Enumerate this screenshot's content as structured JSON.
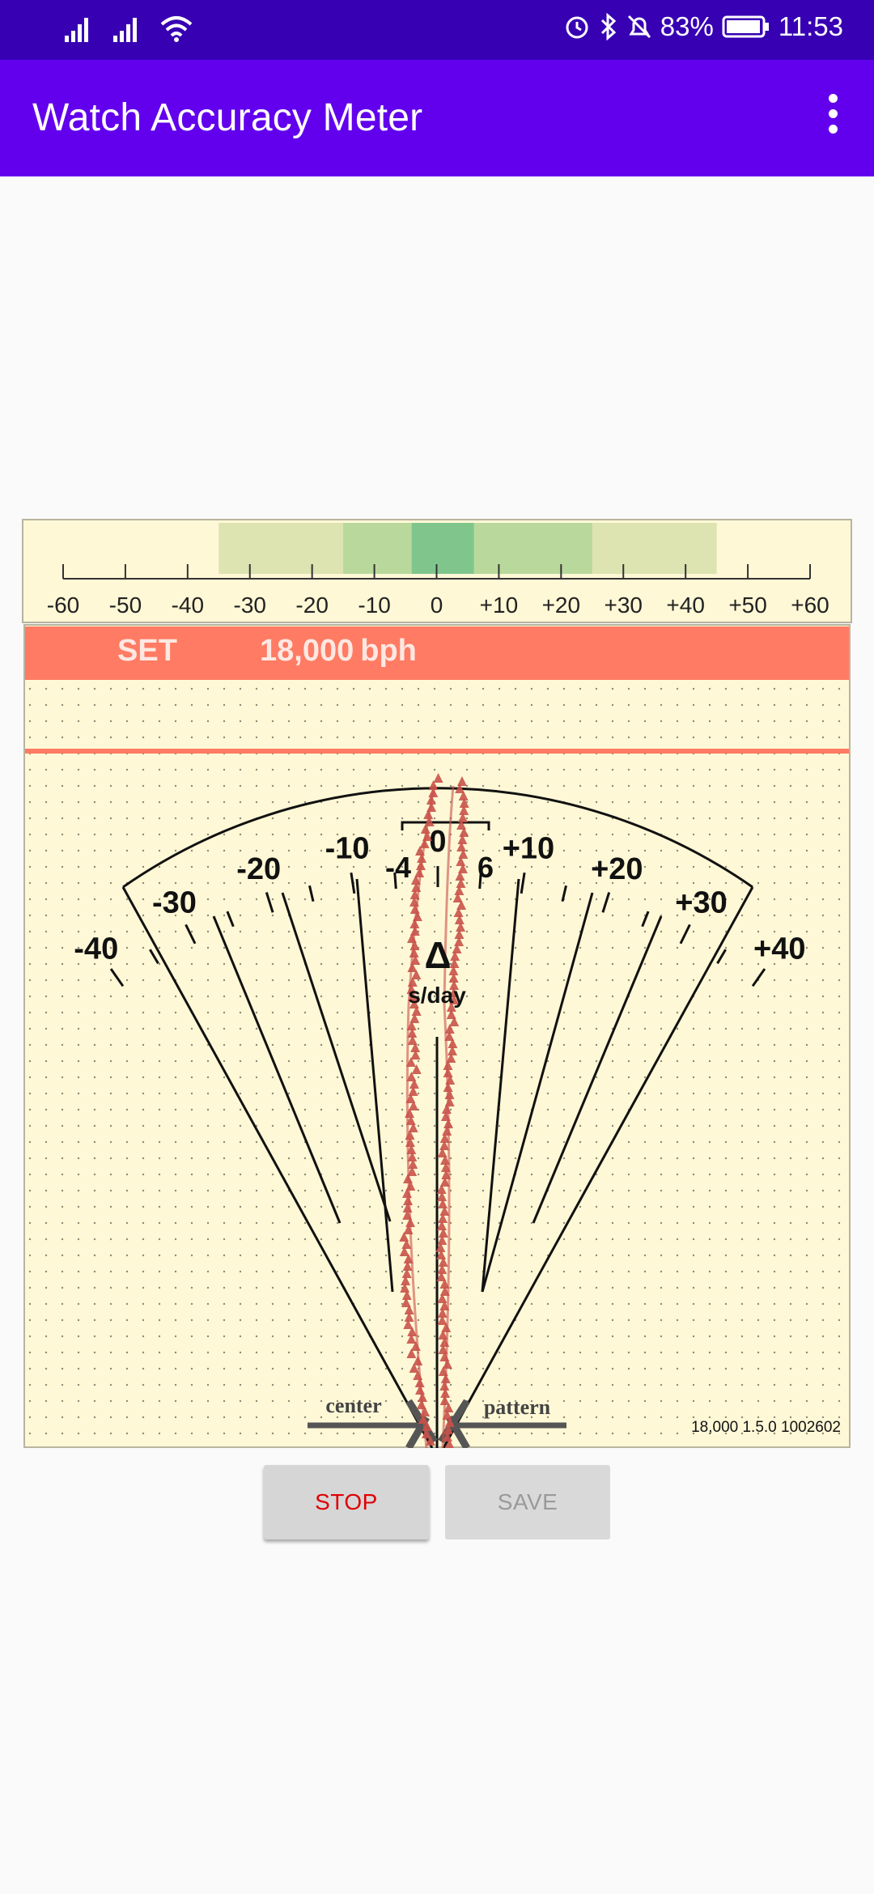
{
  "status_bar": {
    "battery": "83%",
    "time": "11:53",
    "icons": [
      "signal-icon",
      "signal-icon",
      "wifi-icon",
      "alarm-icon",
      "bluetooth-icon",
      "notifications-off-icon",
      "battery-icon"
    ]
  },
  "app_bar": {
    "title": "Watch Accuracy Meter",
    "menu_icon": "overflow-menu-icon"
  },
  "top_scale": {
    "labels": [
      "-60",
      "-50",
      "-40",
      "-30",
      "-20",
      "-10",
      "0",
      "+10",
      "+20",
      "+30",
      "+40",
      "+50",
      "+60"
    ],
    "values": [
      -60,
      -50,
      -40,
      -30,
      -20,
      -10,
      0,
      10,
      20,
      30,
      40,
      50,
      60
    ],
    "bands": [
      {
        "from": -35,
        "to": 45,
        "color": "#dde3b1"
      },
      {
        "from": -15,
        "to": 25,
        "color": "#b8d99b"
      },
      {
        "from": -4,
        "to": 6,
        "color": "#80c68c"
      }
    ]
  },
  "set_bar": {
    "label": "SET",
    "rate_value": "18,000",
    "rate_unit": "bph",
    "color": "#ff7b63"
  },
  "dial": {
    "labels": [
      "-40",
      "-30",
      "-20",
      "-10",
      "0",
      "+10",
      "+20",
      "+30",
      "+40"
    ],
    "values": [
      -40,
      -30,
      -20,
      -10,
      0,
      10,
      20,
      30,
      40
    ],
    "tolerance_low": "-4",
    "tolerance_high": "6",
    "delta_symbol": "Δ",
    "unit": "s/day",
    "center_label": "center",
    "pattern_label": "pattern"
  },
  "build_info": "18,000 1.5.0 1002602",
  "buttons": {
    "stop": "STOP",
    "save": "SAVE"
  },
  "colors": {
    "trace": "#c9524a",
    "panel": "#fff8d6"
  }
}
